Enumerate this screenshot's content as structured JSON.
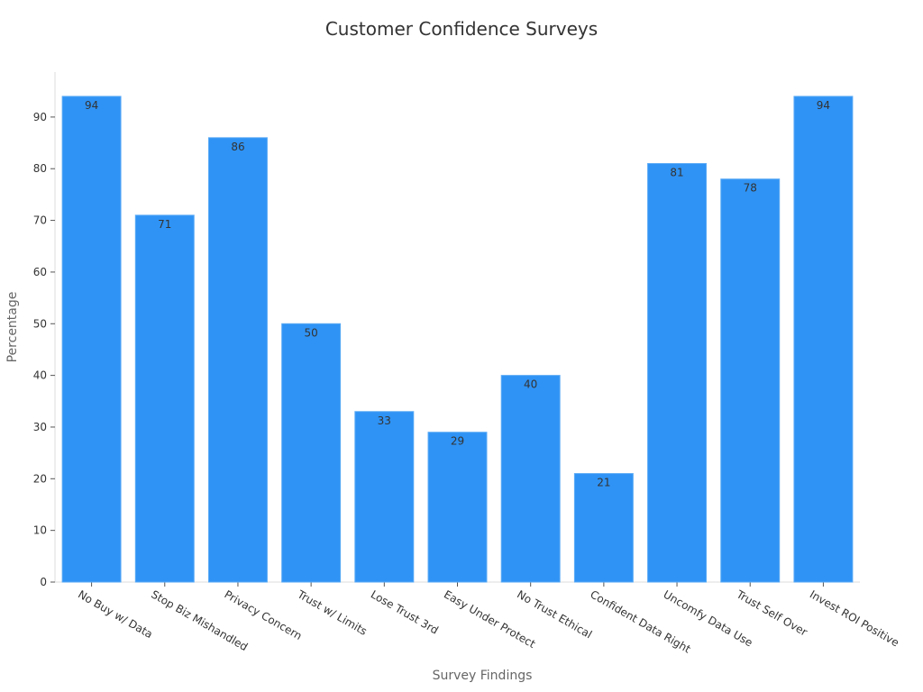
{
  "chart_data": {
    "type": "bar",
    "title": "Customer Confidence Surveys",
    "xlabel": "Survey Findings",
    "ylabel": "Percentage",
    "categories": [
      "No Buy w/ Data",
      "Stop Biz Mishandled",
      "Privacy Concern",
      "Trust w/ Limits",
      "Lose Trust 3rd",
      "Easy Under Protect",
      "No Trust Ethical",
      "Confident Data Right",
      "Uncomfy Data Use",
      "Trust Self Over",
      "Invest ROI Positive"
    ],
    "values": [
      94,
      71,
      86,
      50,
      33,
      29,
      40,
      21,
      81,
      78,
      94
    ],
    "ylim": [
      0,
      98.7
    ],
    "yticks": [
      0,
      10,
      20,
      30,
      40,
      50,
      60,
      70,
      80,
      90
    ],
    "bar_color": "#2f93f5",
    "grid": false,
    "legend": "none"
  }
}
